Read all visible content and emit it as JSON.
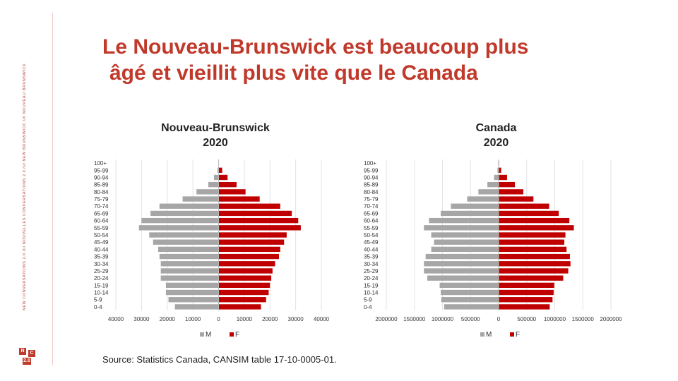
{
  "sidebar": {
    "vertical_text": "NEW CONVERSATIONS 2.0 //// NOUVELLES CONVERSATIONS 2.0 //// NEW BRUNSWICK //// NOUVEAU BRUNSWICK",
    "logo_cells": [
      "N",
      "C",
      "2.0"
    ]
  },
  "header": {
    "title_line1": "Le Nouveau-Brunswick est beaucoup plus",
    "title_line2": "âgé et vieillit plus vite que le  Canada"
  },
  "footer": {
    "source": "Source: Statistics Canada, CANSIM table 17-10-0005-01."
  },
  "colors": {
    "male": "#a6a6a6",
    "female": "#c00000",
    "title": "#c0392b"
  },
  "chart_data": [
    {
      "type": "bar",
      "orientation": "horizontal",
      "title": "Nouveau-Brunswick",
      "subtitle": "2020",
      "categories": [
        "100+",
        "95-99",
        "90-94",
        "85-89",
        "80-84",
        "75-79",
        "70-74",
        "65-69",
        "60-64",
        "55-59",
        "50-54",
        "45-49",
        "40-44",
        "35-39",
        "30-34",
        "25-29",
        "20-24",
        "15-19",
        "10-14",
        "5-9",
        "0-4"
      ],
      "series": [
        {
          "name": "M",
          "values": [
            30,
            450,
            1800,
            4000,
            8600,
            14000,
            23000,
            26500,
            30000,
            31000,
            27000,
            25500,
            23500,
            23000,
            22500,
            22500,
            22500,
            20500,
            20500,
            19500,
            17000
          ]
        },
        {
          "name": "F",
          "values": [
            150,
            1400,
            3500,
            7000,
            10500,
            16000,
            24000,
            28500,
            31000,
            32000,
            26500,
            25500,
            24000,
            23500,
            22000,
            21000,
            20500,
            20000,
            19500,
            18500,
            16500
          ]
        }
      ],
      "xticks": [
        "40000",
        "30000",
        "20000",
        "10000",
        "0",
        "10000",
        "20000",
        "30000",
        "40000"
      ],
      "xlim": [
        -40000,
        40000
      ],
      "legend": [
        "M",
        "F"
      ],
      "legend_position": "bottom"
    },
    {
      "type": "bar",
      "orientation": "horizontal",
      "title": "Canada",
      "subtitle": "2020",
      "categories": [
        "100+",
        "95-99",
        "90-94",
        "85-89",
        "80-84",
        "75-79",
        "70-74",
        "65-69",
        "60-64",
        "55-59",
        "50-54",
        "45-49",
        "40-44",
        "35-39",
        "30-34",
        "25-29",
        "20-24",
        "15-19",
        "10-14",
        "5-9",
        "0-4"
      ],
      "series": [
        {
          "name": "M",
          "values": [
            2000,
            20000,
            80000,
            200000,
            360000,
            560000,
            850000,
            1030000,
            1240000,
            1330000,
            1200000,
            1150000,
            1200000,
            1300000,
            1330000,
            1330000,
            1270000,
            1050000,
            1030000,
            1020000,
            970000
          ]
        },
        {
          "name": "F",
          "values": [
            9000,
            45000,
            150000,
            290000,
            440000,
            620000,
            900000,
            1070000,
            1260000,
            1340000,
            1190000,
            1170000,
            1210000,
            1270000,
            1280000,
            1240000,
            1150000,
            990000,
            980000,
            960000,
            910000
          ]
        }
      ],
      "xticks": [
        "2000000",
        "1500000",
        "1000000",
        "500000",
        "0",
        "500000",
        "1000000",
        "1500000",
        "2000000"
      ],
      "xlim": [
        -2000000,
        2000000
      ],
      "legend": [
        "M",
        "F"
      ],
      "legend_position": "bottom"
    }
  ]
}
